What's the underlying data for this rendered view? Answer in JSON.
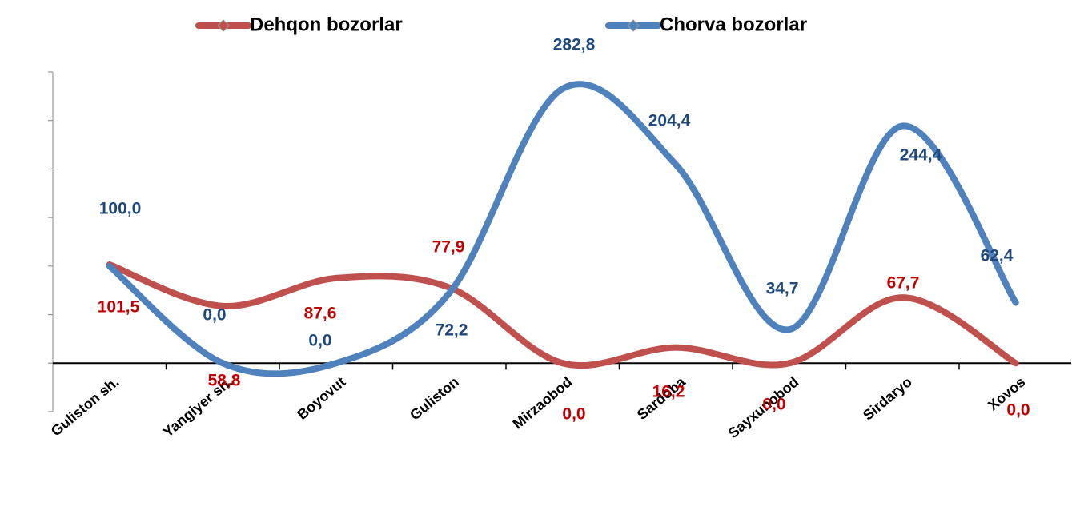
{
  "chart_data": {
    "type": "line",
    "categories": [
      "Guliston sh.",
      "Yangiyer sh.",
      "Boyovut",
      "Guliston",
      "Mirzaobod",
      "Sardoba",
      "Sayxunobod",
      "Sirdaryo",
      "Xovos"
    ],
    "series": [
      {
        "name": "Dehqon bozorlar",
        "color": "#c0504d",
        "label_color": "#c00000",
        "values": [
          101.5,
          58.8,
          87.6,
          77.9,
          0,
          16.2,
          0,
          67.7,
          0
        ],
        "value_labels": [
          "101,5",
          "58,8",
          "87,6",
          "77,9",
          "0,0",
          "16,2",
          "0,0",
          "67,7",
          "0,0"
        ]
      },
      {
        "name": "Chorva bozorlar",
        "color": "#4f81bd",
        "label_color": "#1f497d",
        "values": [
          100,
          0,
          0,
          72.2,
          282.8,
          204.4,
          34.7,
          244.4,
          62.4
        ],
        "value_labels": [
          "100,0",
          "0,0",
          "0,0",
          "72,2",
          "282,8",
          "204,4",
          "34,7",
          "244,4",
          "62,4"
        ]
      }
    ],
    "ylim": [
      -50,
      300
    ],
    "yticks": [
      -50,
      0,
      50,
      100,
      150,
      200,
      250,
      300
    ],
    "smooth": true,
    "legend": "top"
  }
}
